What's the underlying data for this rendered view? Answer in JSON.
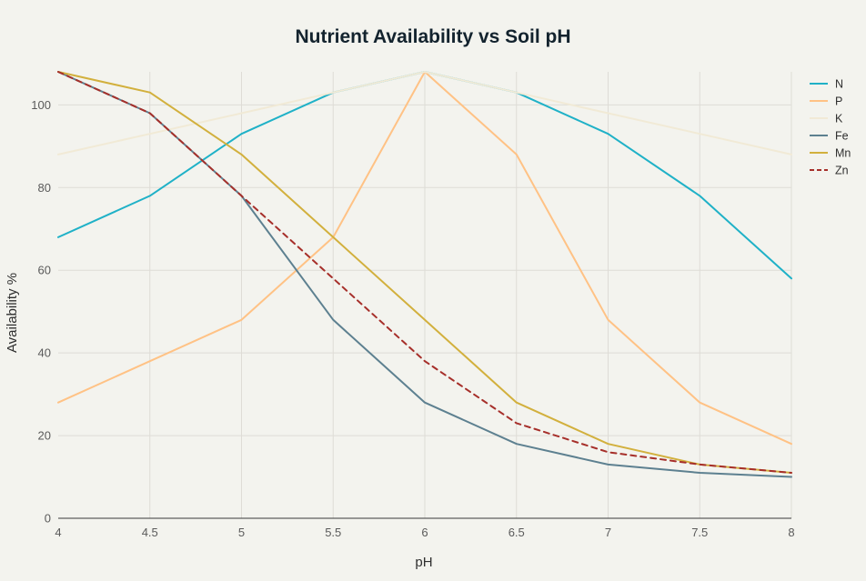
{
  "chart_data": {
    "type": "line",
    "title": "Nutrient Availability vs Soil pH",
    "xlabel": "pH",
    "ylabel": "Availability %",
    "x": [
      4,
      4.5,
      5,
      5.5,
      6,
      6.5,
      7,
      7.5,
      8
    ],
    "x_tick_labels": [
      "4",
      "4.5",
      "5",
      "5.5",
      "6",
      "6.5",
      "7",
      "7.5",
      "8"
    ],
    "y_ticks": [
      0,
      20,
      40,
      60,
      80,
      100
    ],
    "xlim": [
      4,
      8
    ],
    "ylim": [
      0,
      108
    ],
    "grid": true,
    "legend_position": "top-right",
    "series": [
      {
        "name": "N",
        "color": "#1fb1c7",
        "dash": "solid",
        "values": [
          68,
          78,
          93,
          103,
          108,
          103,
          93,
          78,
          58
        ]
      },
      {
        "name": "P",
        "color": "#ffc285",
        "dash": "solid",
        "values": [
          28,
          38,
          48,
          68,
          108,
          88,
          48,
          28,
          18
        ]
      },
      {
        "name": "K",
        "color": "#f1ead6",
        "dash": "solid",
        "values": [
          88,
          93,
          98,
          103,
          108,
          103,
          98,
          93,
          88
        ]
      },
      {
        "name": "Fe",
        "color": "#5d8090",
        "dash": "solid",
        "values": [
          108,
          98,
          78,
          48,
          28,
          18,
          13,
          11,
          10
        ]
      },
      {
        "name": "Mn",
        "color": "#d2b03d",
        "dash": "solid",
        "values": [
          108,
          103,
          88,
          68,
          48,
          28,
          18,
          13,
          11
        ]
      },
      {
        "name": "Zn",
        "color": "#a62f2a",
        "dash": "dashed",
        "values": [
          108,
          98,
          78,
          58,
          38,
          23,
          16,
          13,
          11
        ]
      }
    ]
  }
}
